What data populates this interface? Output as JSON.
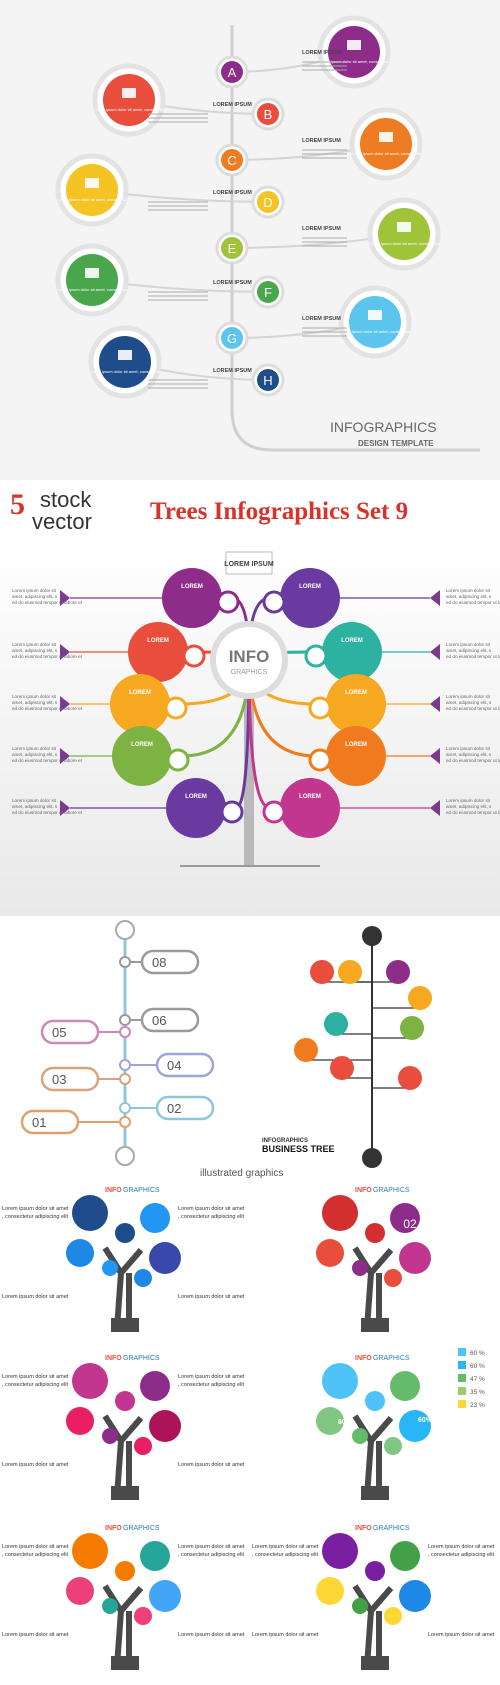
{
  "panel1": {
    "letters": [
      "A",
      "B",
      "C",
      "D",
      "E",
      "F",
      "G",
      "H"
    ],
    "heading": "LOREM IPSUM",
    "caption": "Lorem ipsum dolor sit amet, consectetur",
    "footer_title": "INFOGRAPHICS",
    "footer_subtitle": "DESIGN TEMPLATE",
    "colors": [
      "#8e2c8a",
      "#e94e3d",
      "#ee7c22",
      "#f6c325",
      "#9fc43a",
      "#4aa64d",
      "#5bc5ee",
      "#1f4d8c"
    ]
  },
  "banner": {
    "number": "5",
    "word1": "stock",
    "word2": "vector",
    "title": "Trees Infographics Set 9"
  },
  "panel2": {
    "center_title": "INFO",
    "center_subtitle": "GRAPHICS",
    "top_label": "LOREM IPSUM",
    "bubble_label": "LOREM",
    "side_text": "Lorem ipsum dolor sit amet, adipiscing elit, sed do eiusmod tempor ut labore et",
    "colors": [
      "#8e2c8a",
      "#e94e3d",
      "#f6a821",
      "#7cb342",
      "#6a3aa0",
      "#2db1a0"
    ]
  },
  "panel3": {
    "left_numbers": [
      "08",
      "06",
      "05",
      "04",
      "03",
      "02",
      "01"
    ],
    "right_title": "INFOGRAPHICS",
    "right_subtitle": "BUSINESS TREE",
    "caption": "illustrated graphics"
  },
  "panel4": {
    "heading_prefix": "INFO",
    "heading_rest": "GRAPHICS",
    "text_block": "Lorem ipsum dolor sit amet, consectetur adipiscing elit",
    "percentages": [
      "60 %",
      "60 %",
      "47 %",
      "35 %",
      "23 %"
    ],
    "pct_labels": [
      "47%",
      "80%",
      "35%",
      "60%",
      "23%"
    ],
    "steps": [
      "01",
      "02",
      "03"
    ]
  }
}
